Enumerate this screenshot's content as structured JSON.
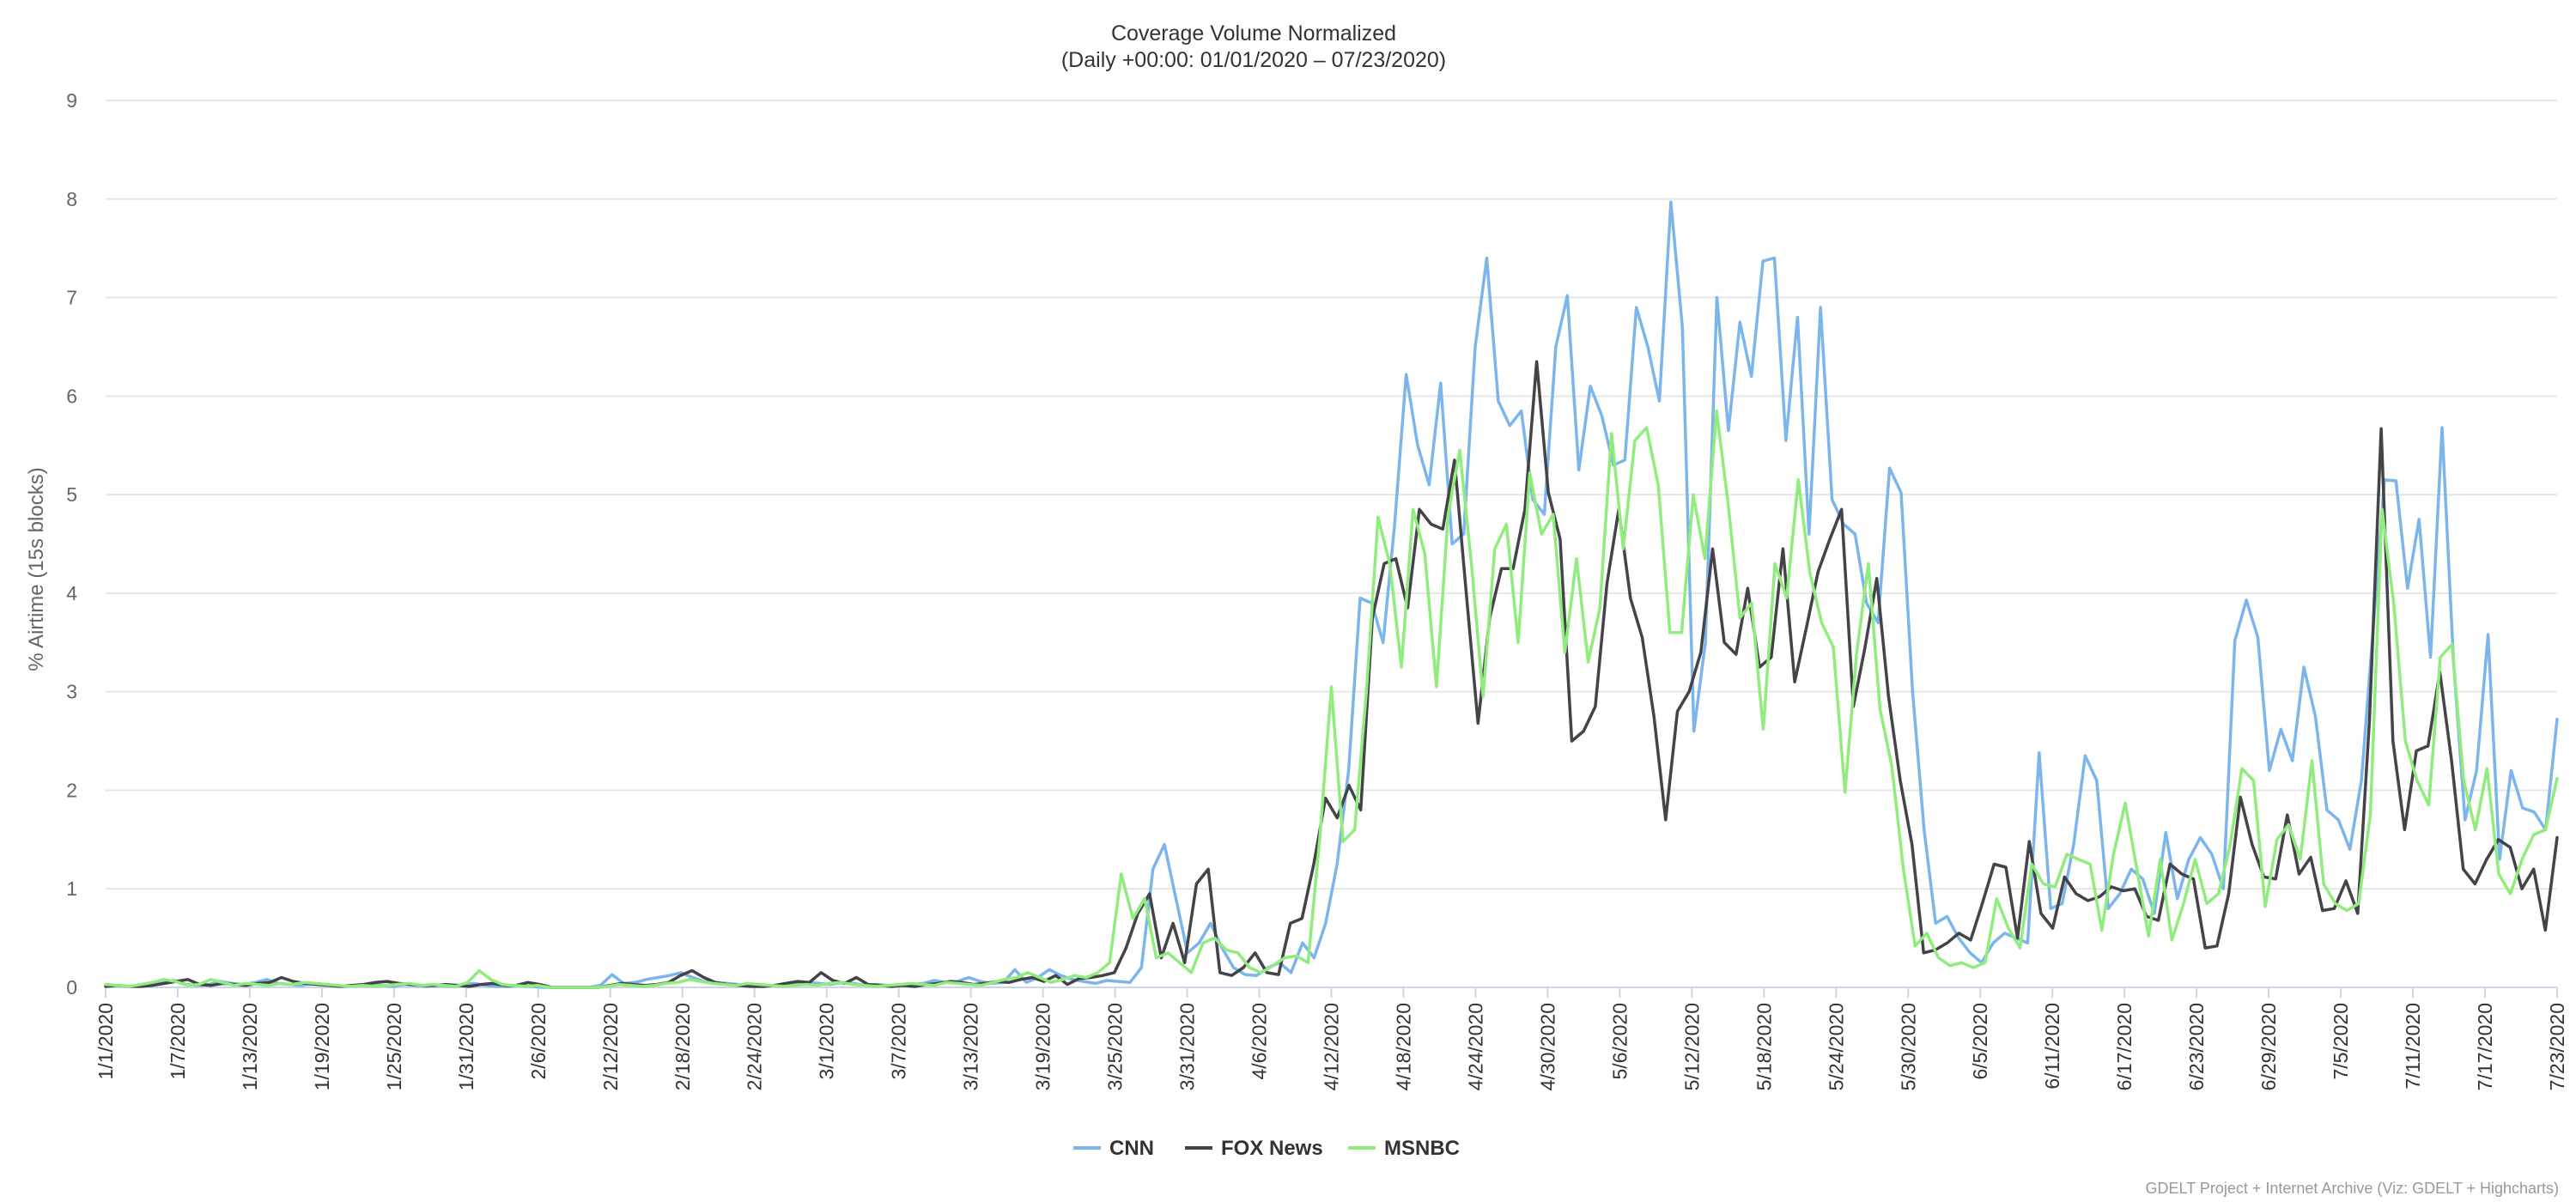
{
  "chart_data": {
    "type": "line",
    "title": "Coverage Volume Normalized",
    "subtitle": "(Daily +00:00: 01/01/2020 – 07/23/2020)",
    "xlabel": "",
    "ylabel": "% Airtime (15s blocks)",
    "ylim": [
      0,
      9
    ],
    "yticks": [
      "0",
      "1",
      "2",
      "3",
      "4",
      "5",
      "6",
      "7",
      "8",
      "9"
    ],
    "grid": true,
    "legend_position": "bottom-center",
    "x_tick_labels": [
      "1/1/2020",
      "1/7/2020",
      "1/13/2020",
      "1/19/2020",
      "1/25/2020",
      "1/31/2020",
      "2/6/2020",
      "2/12/2020",
      "2/18/2020",
      "2/24/2020",
      "3/1/2020",
      "3/7/2020",
      "3/13/2020",
      "3/19/2020",
      "3/25/2020",
      "3/31/2020",
      "4/6/2020",
      "4/12/2020",
      "4/18/2020",
      "4/24/2020",
      "4/30/2020",
      "5/6/2020",
      "5/12/2020",
      "5/18/2020",
      "5/24/2020",
      "5/30/2020",
      "6/5/2020",
      "6/11/2020",
      "6/17/2020",
      "6/23/2020",
      "6/29/2020",
      "7/5/2020",
      "7/11/2020",
      "7/17/2020",
      "7/23/2020"
    ],
    "x_start": "2020-01-01",
    "x_end": "2020-07-23",
    "series": [
      {
        "name": "CNN",
        "color": "#7cb5ec",
        "values": [
          0.02,
          0.02,
          0.01,
          0.02,
          0.04,
          0.05,
          0.07,
          0.03,
          0.02,
          0.03,
          0.06,
          0.04,
          0.03,
          0.05,
          0.08,
          0.04,
          0.03,
          0.02,
          0.04,
          0.03,
          0.02,
          0.01,
          0.02,
          0.03,
          0.02,
          0.01,
          0.03,
          0.02,
          0.01,
          0.02,
          0.01,
          0.03,
          0.04,
          0.02,
          0.01,
          0.01,
          0.02,
          0.01,
          0,
          0,
          0,
          0,
          0,
          0.02,
          0.13,
          0.04,
          0.05,
          0.08,
          0.1,
          0.12,
          0.15,
          0.1,
          0.06,
          0.05,
          0.04,
          0.03,
          0.02,
          0.01,
          0.02,
          0.03,
          0.04,
          0.05,
          0.04,
          0.03,
          0.05,
          0.04,
          0.02,
          0.03,
          0.02,
          0.02,
          0.03,
          0.04,
          0.07,
          0.05,
          0.06,
          0.1,
          0.06,
          0.04,
          0.05,
          0.18,
          0.05,
          0.1,
          0.18,
          0.12,
          0.08,
          0.06,
          0.04,
          0.07,
          0.06,
          0.05,
          0.2,
          1.2,
          1.45,
          0.9,
          0.35,
          0.45,
          0.65,
          0.4,
          0.2,
          0.13,
          0.12,
          0.2,
          0.25,
          0.15,
          0.45,
          0.3,
          0.65,
          1.25,
          2.2,
          3.95,
          3.9,
          3.5,
          4.7,
          6.22,
          5.5,
          5.1,
          6.13,
          4.5,
          4.6,
          6.5,
          7.4,
          5.95,
          5.7,
          5.85,
          4.95,
          4.8,
          6.5,
          7.02,
          5.25,
          6.1,
          5.8,
          5.3,
          5.35,
          6.9,
          6.5,
          5.95,
          7.97,
          6.7,
          2.6,
          3.5,
          7.0,
          5.65,
          6.75,
          6.2,
          7.37,
          7.4,
          5.55,
          6.8,
          4.6,
          6.9,
          4.95,
          4.7,
          4.6,
          3.9,
          3.7,
          5.27,
          5.02,
          3.0,
          1.6,
          0.65,
          0.72,
          0.5,
          0.35,
          0.25,
          0.45,
          0.55,
          0.5,
          0.45,
          2.38,
          0.8,
          0.85,
          1.45,
          2.35,
          2.1,
          0.8,
          0.95,
          1.2,
          1.1,
          0.75,
          1.57,
          0.9,
          1.3,
          1.52,
          1.35,
          1.0,
          3.52,
          3.93,
          3.55,
          2.2,
          2.62,
          2.3,
          3.25,
          2.75,
          1.8,
          1.7,
          1.4,
          2.1,
          3.6,
          5.15,
          5.14,
          4.05,
          4.75,
          3.35,
          5.68,
          3.3,
          1.7,
          2.2,
          3.58,
          1.3,
          2.2,
          1.82,
          1.78,
          1.6,
          2.72
        ]
      },
      {
        "name": "FOX News",
        "color": "#434348",
        "values": [
          0.01,
          0.02,
          0.01,
          0.01,
          0.02,
          0.04,
          0.06,
          0.08,
          0.03,
          0.02,
          0.04,
          0.03,
          0.02,
          0.04,
          0.05,
          0.1,
          0.06,
          0.04,
          0.03,
          0.02,
          0.01,
          0.02,
          0.03,
          0.05,
          0.06,
          0.04,
          0.03,
          0.02,
          0.02,
          0.03,
          0.02,
          0.01,
          0.03,
          0.04,
          0.02,
          0.02,
          0.05,
          0.03,
          0,
          0,
          0,
          0,
          0,
          0.02,
          0.04,
          0.03,
          0.02,
          0.03,
          0.05,
          0.12,
          0.17,
          0.1,
          0.05,
          0.03,
          0.02,
          0.01,
          0.01,
          0.02,
          0.04,
          0.06,
          0.05,
          0.15,
          0.07,
          0.04,
          0.1,
          0.03,
          0.02,
          0.01,
          0.02,
          0.01,
          0.03,
          0.04,
          0.06,
          0.05,
          0.03,
          0.04,
          0.06,
          0.05,
          0.08,
          0.1,
          0.06,
          0.12,
          0.03,
          0.09,
          0.1,
          0.12,
          0.15,
          0.4,
          0.75,
          0.95,
          0.3,
          0.65,
          0.25,
          1.05,
          1.2,
          0.15,
          0.12,
          0.2,
          0.35,
          0.15,
          0.13,
          0.65,
          0.7,
          1.25,
          1.92,
          1.72,
          2.05,
          1.8,
          3.75,
          4.3,
          4.35,
          3.85,
          4.85,
          4.7,
          4.65,
          5.35,
          4.0,
          2.68,
          3.75,
          4.25,
          4.25,
          4.85,
          6.35,
          5.02,
          4.55,
          2.5,
          2.6,
          2.85,
          4.1,
          4.85,
          3.95,
          3.55,
          2.75,
          1.7,
          2.8,
          3.0,
          3.4,
          4.45,
          3.5,
          3.38,
          4.05,
          3.25,
          3.35,
          4.45,
          3.1,
          3.65,
          4.22,
          4.55,
          4.85,
          2.85,
          3.45,
          4.15,
          2.95,
          2.1,
          1.45,
          0.35,
          0.38,
          0.45,
          0.55,
          0.48,
          0.85,
          1.25,
          1.22,
          0.5,
          1.48,
          0.75,
          0.6,
          1.12,
          0.95,
          0.88,
          0.92,
          1.02,
          0.98,
          1.0,
          0.72,
          0.68,
          1.25,
          1.15,
          1.1,
          0.4,
          0.42,
          0.95,
          1.93,
          1.45,
          1.12,
          1.1,
          1.75,
          1.15,
          1.32,
          0.78,
          0.8,
          1.08,
          0.75,
          2.7,
          5.67,
          2.5,
          1.6,
          2.4,
          2.45,
          3.2,
          2.3,
          1.2,
          1.05,
          1.3,
          1.5,
          1.42,
          1.0,
          1.2,
          0.58,
          1.52
        ]
      },
      {
        "name": "MSNBC",
        "color": "#90ed7d",
        "values": [
          0.03,
          0.02,
          0.01,
          0.03,
          0.05,
          0.08,
          0.06,
          0.02,
          0.03,
          0.08,
          0.05,
          0.02,
          0.04,
          0.03,
          0.02,
          0.04,
          0.03,
          0.05,
          0.04,
          0.03,
          0.02,
          0.01,
          0.02,
          0.01,
          0.02,
          0.03,
          0.04,
          0.02,
          0.03,
          0.02,
          0.01,
          0.05,
          0.17,
          0.08,
          0.03,
          0.02,
          0.01,
          0.02,
          0,
          0,
          0,
          0,
          0,
          0.01,
          0.03,
          0.02,
          0.01,
          0.02,
          0.04,
          0.05,
          0.08,
          0.06,
          0.04,
          0.03,
          0.02,
          0.04,
          0.03,
          0.02,
          0.01,
          0.02,
          0.03,
          0.02,
          0.04,
          0.05,
          0.03,
          0.02,
          0.01,
          0.02,
          0.03,
          0.04,
          0.03,
          0.02,
          0.05,
          0.04,
          0.03,
          0.02,
          0.05,
          0.08,
          0.1,
          0.15,
          0.1,
          0.05,
          0.08,
          0.12,
          0.1,
          0.15,
          0.25,
          1.15,
          0.7,
          0.9,
          0.3,
          0.35,
          0.25,
          0.15,
          0.45,
          0.5,
          0.38,
          0.35,
          0.2,
          0.15,
          0.22,
          0.3,
          0.32,
          0.25,
          1.5,
          3.05,
          1.48,
          1.6,
          3.0,
          4.77,
          4.3,
          3.25,
          4.85,
          4.4,
          3.05,
          4.8,
          5.45,
          4.3,
          2.95,
          4.45,
          4.7,
          3.5,
          5.22,
          4.6,
          4.8,
          3.4,
          4.35,
          3.3,
          3.85,
          5.62,
          4.45,
          5.55,
          5.68,
          5.1,
          3.6,
          3.6,
          5.0,
          4.35,
          5.85,
          4.9,
          3.75,
          3.9,
          2.62,
          4.3,
          3.95,
          5.15,
          4.2,
          3.7,
          3.45,
          1.98,
          3.4,
          4.3,
          2.82,
          2.25,
          1.2,
          0.42,
          0.55,
          0.3,
          0.22,
          0.25,
          0.2,
          0.25,
          0.9,
          0.6,
          0.4,
          1.25,
          1.05,
          1.02,
          1.35,
          1.3,
          1.25,
          0.58,
          1.35,
          1.87,
          1.2,
          0.52,
          1.3,
          0.48,
          0.85,
          1.3,
          0.85,
          0.95,
          1.45,
          2.22,
          2.1,
          0.82,
          1.5,
          1.65,
          1.3,
          2.3,
          1.05,
          0.85,
          0.78,
          0.85,
          1.75,
          4.85,
          3.9,
          2.5,
          2.1,
          1.85,
          3.35,
          3.48,
          2.1,
          1.6,
          2.22,
          1.15,
          0.95,
          1.3,
          1.55,
          1.6,
          2.12
        ]
      }
    ]
  },
  "credits": "GDELT Project + Internet Archive (Viz: GDELT + Highcharts)"
}
